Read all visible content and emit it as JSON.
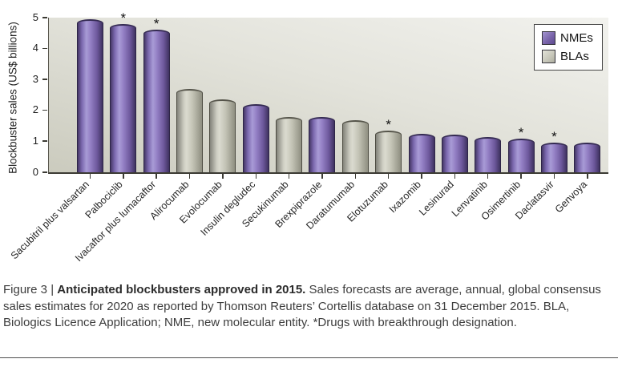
{
  "caption": {
    "prefix": "Figure 3 | ",
    "title_bold": "Anticipated blockbusters approved in 2015.",
    "body": " Sales forecasts are average, annual, global consensus sales estimates for 2020 as reported by Thomson Reuters’ Cortellis database on 31 December 2015. BLA, Biologics Licence Application; NME, new molecular entity. *Drugs with breakthrough designation."
  },
  "colors": {
    "nme_purple": "#7a65ab",
    "bla_grey": "#cbcbbe",
    "axis_text": "#1f1f1f",
    "plot_background_light": "#f2f2ee",
    "plot_background_dark": "#cbcbbe"
  },
  "chart_data": {
    "type": "bar",
    "title": "",
    "xlabel": "",
    "ylabel": "Blockbuster sales (US$ billions)",
    "ylim": [
      0,
      5
    ],
    "yticks": [
      0,
      1,
      2,
      3,
      4,
      5
    ],
    "grid": false,
    "legend_position": "top-right",
    "legend": [
      {
        "label": "NMEs",
        "color": "#7a65ab",
        "type": "NME"
      },
      {
        "label": "BLAs",
        "color": "#cbcbbe",
        "type": "BLA"
      }
    ],
    "star_note": "*Drugs with breakthrough designation",
    "categories": [
      "Sacubitril plus valsartan",
      "Palbociclib",
      "Ivacaftor plus lumacaftor",
      "Alirocumab",
      "Evolocumab",
      "Insulin degludec",
      "Secukinumab",
      "Brexpiprazole",
      "Daratumumab",
      "Elotuzumab",
      "Ixazomib",
      "Lesinurad",
      "Lenvatinib",
      "Osimertinib",
      "Daclatasvir",
      "Genvoya"
    ],
    "values": [
      4.95,
      4.8,
      4.6,
      2.7,
      2.35,
      2.2,
      1.8,
      1.78,
      1.68,
      1.35,
      1.25,
      1.22,
      1.13,
      1.1,
      0.97,
      0.95
    ],
    "series_type": [
      "NME",
      "NME",
      "NME",
      "BLA",
      "BLA",
      "NME",
      "BLA",
      "NME",
      "BLA",
      "BLA",
      "NME",
      "NME",
      "NME",
      "NME",
      "NME",
      "NME"
    ],
    "starred": [
      false,
      true,
      true,
      false,
      false,
      false,
      false,
      false,
      false,
      true,
      false,
      false,
      false,
      true,
      true,
      false
    ]
  }
}
